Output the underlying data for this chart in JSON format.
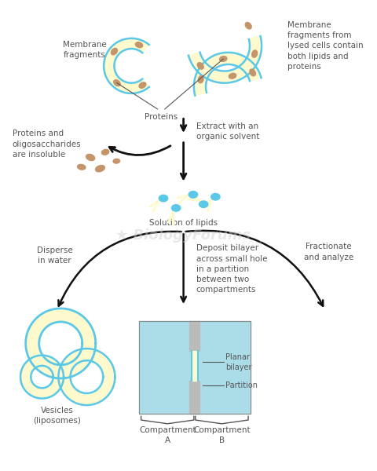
{
  "background_color": "#ffffff",
  "membrane_color": "#5BC8E8",
  "lipid_fill_color": "#FFFACD",
  "protein_color": "#C4956A",
  "partition_color": "#BBBBBB",
  "compartment_color": "#AADDE8",
  "text_color": "#555555",
  "arrow_color": "#111111",
  "annotations": {
    "membrane_fragments_left": "Membrane\nfragments",
    "membrane_fragments_right": "Membrane\nfragments from\nlysed cells contain\nboth lipids and\nproteins",
    "proteins": "Proteins",
    "extract": "Extract with an\norganic solvent",
    "proteins_insoluble": "Proteins and\noligosaccharides\nare insoluble",
    "solution_lipids": "Solution of lipids",
    "disperse_water": "Disperse\nin water",
    "deposit_bilayer": "Deposit bilayer\nacross small hole\nin a partition\nbetween two\ncompartments",
    "fractionate": "Fractionate\nand analyze",
    "vesicles": "Vesicles\n(liposomes)",
    "planar_bilayer": "Planar\nbilayer",
    "partition_label": "Partition",
    "compartment_a": "Compartment\nA",
    "compartment_b": "Compartment\nB"
  }
}
